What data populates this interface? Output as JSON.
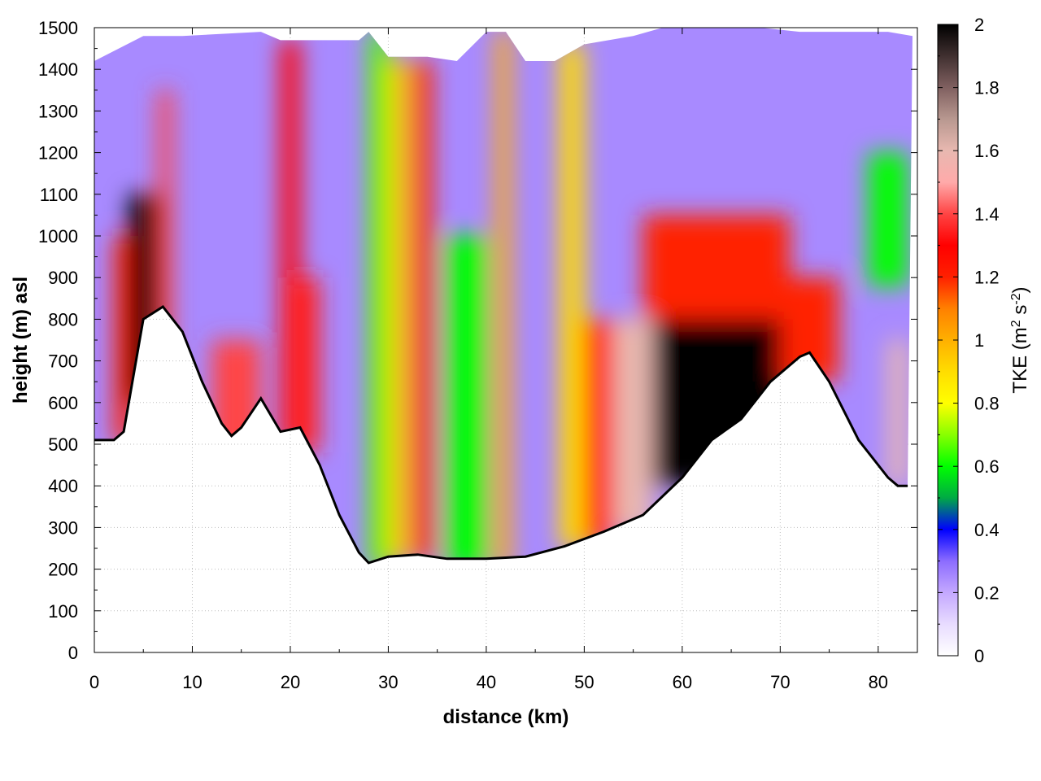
{
  "chart_data": {
    "type": "heatmap",
    "title": "",
    "xlabel": "distance (km)",
    "ylabel": "height (m) asl",
    "xlim": [
      0,
      84
    ],
    "ylim": [
      0,
      1500
    ],
    "x_ticks": [
      "0",
      "10",
      "20",
      "30",
      "40",
      "50",
      "60",
      "70",
      "80"
    ],
    "y_ticks": [
      "0",
      "100",
      "200",
      "300",
      "400",
      "500",
      "600",
      "700",
      "800",
      "900",
      "1000",
      "1100",
      "1200",
      "1300",
      "1400",
      "1500"
    ],
    "grid": true,
    "colorbar": {
      "label_main": "TKE (m",
      "label_sup1": "2",
      "label_mid": " s",
      "label_sup2": "-2",
      "label_end": ")",
      "range": [
        0,
        2
      ],
      "ticks": [
        "0",
        "0.2",
        "0.4",
        "0.6",
        "0.8",
        "1",
        "1.2",
        "1.4",
        "1.6",
        "1.8",
        "2"
      ],
      "stops": [
        {
          "v": 0.0,
          "color": "#ffffff"
        },
        {
          "v": 0.1,
          "color": "#e8dcff"
        },
        {
          "v": 0.2,
          "color": "#c4a8ff"
        },
        {
          "v": 0.3,
          "color": "#8c6cff"
        },
        {
          "v": 0.4,
          "color": "#0000ff"
        },
        {
          "v": 0.5,
          "color": "#00aa44"
        },
        {
          "v": 0.6,
          "color": "#00ff00"
        },
        {
          "v": 0.7,
          "color": "#88ff00"
        },
        {
          "v": 0.8,
          "color": "#ffff00"
        },
        {
          "v": 0.9,
          "color": "#ffdd00"
        },
        {
          "v": 1.0,
          "color": "#ffb000"
        },
        {
          "v": 1.1,
          "color": "#ff8000"
        },
        {
          "v": 1.2,
          "color": "#ff2000"
        },
        {
          "v": 1.3,
          "color": "#ff0000"
        },
        {
          "v": 1.4,
          "color": "#ff4444"
        },
        {
          "v": 1.5,
          "color": "#ffaaaa"
        },
        {
          "v": 1.6,
          "color": "#e8b8b0"
        },
        {
          "v": 1.7,
          "color": "#b89890"
        },
        {
          "v": 1.8,
          "color": "#806060"
        },
        {
          "v": 1.9,
          "color": "#403030"
        },
        {
          "v": 2.0,
          "color": "#000000"
        }
      ]
    },
    "terrain": {
      "x": [
        0,
        2,
        3,
        5,
        7,
        9,
        11,
        13,
        14,
        15,
        17,
        19,
        21,
        23,
        25,
        27,
        28,
        30,
        33,
        36,
        40,
        44,
        48,
        52,
        56,
        60,
        63,
        66,
        69,
        72,
        73,
        75,
        78,
        81,
        82,
        83
      ],
      "y": [
        510,
        510,
        530,
        800,
        830,
        770,
        650,
        550,
        520,
        540,
        610,
        530,
        540,
        450,
        330,
        240,
        215,
        230,
        235,
        225,
        225,
        230,
        255,
        290,
        330,
        420,
        510,
        560,
        650,
        710,
        720,
        650,
        510,
        420,
        400,
        400
      ]
    },
    "top_boundary": {
      "x": [
        0,
        5,
        9,
        17,
        19,
        22,
        27,
        28,
        30,
        34,
        37,
        40,
        42,
        44,
        47,
        50,
        55,
        58,
        63,
        68,
        72,
        77,
        81,
        84
      ],
      "y": [
        1420,
        1480,
        1480,
        1490,
        1470,
        1470,
        1470,
        1490,
        1430,
        1430,
        1420,
        1490,
        1490,
        1420,
        1420,
        1460,
        1480,
        1500,
        1500,
        1500,
        1490,
        1490,
        1490,
        1480
      ]
    },
    "zones": [
      {
        "x": [
          2,
          4
        ],
        "y": [
          500,
          1000
        ],
        "value": 1.2
      },
      {
        "x": [
          3.5,
          6.5
        ],
        "y": [
          600,
          1100
        ],
        "value": 2.0
      },
      {
        "x": [
          6.5,
          8
        ],
        "y": [
          700,
          1350
        ],
        "value": 1.4
      },
      {
        "x": [
          12,
          17
        ],
        "y": [
          450,
          750
        ],
        "value": 1.4
      },
      {
        "x": [
          19,
          21
        ],
        "y": [
          500,
          1470
        ],
        "value": 1.3
      },
      {
        "x": [
          20,
          23
        ],
        "y": [
          480,
          900
        ],
        "value": 1.35
      },
      {
        "x": [
          28,
          30
        ],
        "y": [
          200,
          1490
        ],
        "value": 0.65
      },
      {
        "x": [
          30,
          32
        ],
        "y": [
          220,
          1420
        ],
        "value": 0.95
      },
      {
        "x": [
          32.5,
          34.5
        ],
        "y": [
          220,
          1420
        ],
        "value": 1.2
      },
      {
        "x": [
          36,
          40
        ],
        "y": [
          200,
          1000
        ],
        "value": 0.6
      },
      {
        "x": [
          41,
          42.5
        ],
        "y": [
          200,
          1490
        ],
        "value": 1.0
      },
      {
        "x": [
          47.5,
          50
        ],
        "y": [
          250,
          1460
        ],
        "value": 0.9
      },
      {
        "x": [
          50,
          53
        ],
        "y": [
          260,
          800
        ],
        "value": 1.3
      },
      {
        "x": [
          53,
          57
        ],
        "y": [
          290,
          800
        ],
        "value": 1.6
      },
      {
        "x": [
          57,
          71
        ],
        "y": [
          400,
          930
        ],
        "value": 2.0
      },
      {
        "x": [
          56,
          71
        ],
        "y": [
          800,
          1050
        ],
        "value": 1.2
      },
      {
        "x": [
          70,
          76
        ],
        "y": [
          650,
          900
        ],
        "value": 1.2
      },
      {
        "x": [
          79,
          83
        ],
        "y": [
          880,
          1200
        ],
        "value": 0.6
      },
      {
        "x": [
          81,
          83
        ],
        "y": [
          400,
          750
        ],
        "value": 1.6
      }
    ]
  }
}
